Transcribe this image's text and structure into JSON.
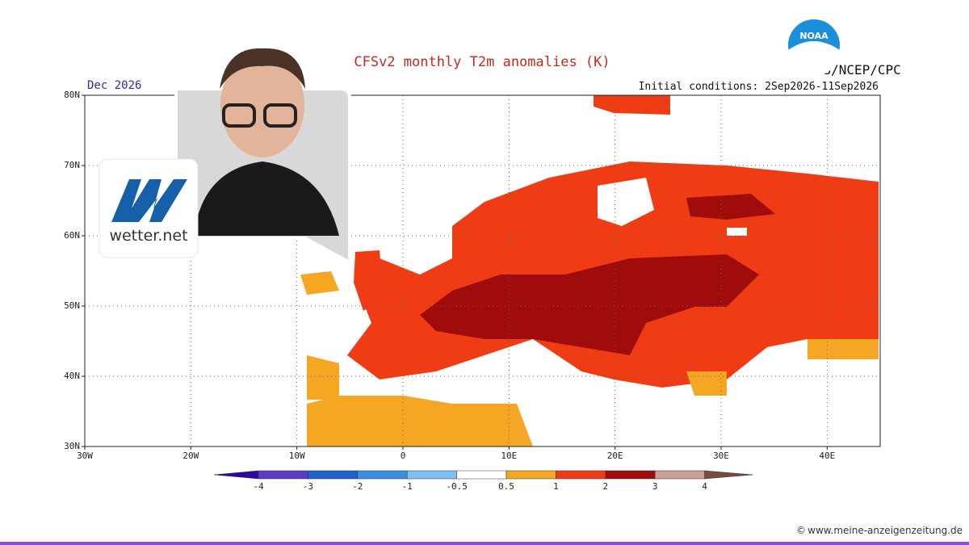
{
  "map": {
    "title": "CFSv2 monthly T2m anomalies (K)",
    "period": "Dec 2026",
    "agency": "NWS/NCEP/CPC",
    "initial_conditions": "Initial conditions: 2Sep2026-11Sep2026",
    "logo": "NOAA",
    "lat_labels": [
      "30N",
      "40N",
      "50N",
      "60N",
      "70N",
      "80N"
    ],
    "lon_labels": [
      "30W",
      "20W",
      "10W",
      "0",
      "10E",
      "20E",
      "30E",
      "40E"
    ],
    "legend": {
      "ticks": [
        -4,
        -3,
        -2,
        -1,
        -0.5,
        0.5,
        1,
        2,
        3,
        4
      ],
      "colors": [
        "#2a0aa0",
        "#5a3cc8",
        "#1f5fd0",
        "#3a8ee0",
        "#80bdf0",
        "#ffffff",
        "#f5a623",
        "#f03c14",
        "#a00c0c",
        "#c9a091",
        "#7a4a3a"
      ]
    }
  },
  "brand": "wetter.net",
  "watermark": "www.meine-anzeigenzeitung.de"
}
